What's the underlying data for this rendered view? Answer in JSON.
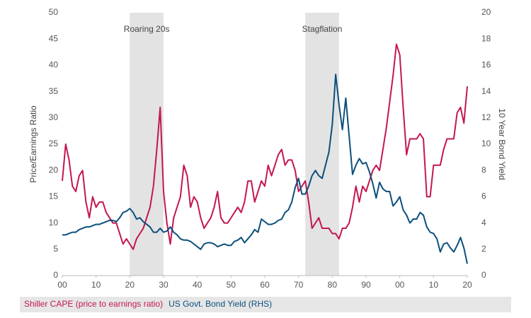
{
  "chart_data": {
    "type": "line",
    "y_label": "Price/Earnings Ratio",
    "y2_label": "10 Year Bond Yield",
    "x": [
      1900,
      1901,
      1902,
      1903,
      1904,
      1905,
      1906,
      1907,
      1908,
      1909,
      1910,
      1911,
      1912,
      1913,
      1914,
      1915,
      1916,
      1917,
      1918,
      1919,
      1920,
      1921,
      1922,
      1923,
      1924,
      1925,
      1926,
      1927,
      1928,
      1929,
      1930,
      1931,
      1932,
      1933,
      1934,
      1935,
      1936,
      1937,
      1938,
      1939,
      1940,
      1941,
      1942,
      1943,
      1944,
      1945,
      1946,
      1947,
      1948,
      1949,
      1950,
      1951,
      1952,
      1953,
      1954,
      1955,
      1956,
      1957,
      1958,
      1959,
      1960,
      1961,
      1962,
      1963,
      1964,
      1965,
      1966,
      1967,
      1968,
      1969,
      1970,
      1971,
      1972,
      1973,
      1974,
      1975,
      1976,
      1977,
      1978,
      1979,
      1980,
      1981,
      1982,
      1983,
      1984,
      1985,
      1986,
      1987,
      1988,
      1989,
      1990,
      1991,
      1992,
      1993,
      1994,
      1995,
      1996,
      1997,
      1998,
      1999,
      2000,
      2001,
      2002,
      2003,
      2004,
      2005,
      2006,
      2007,
      2008,
      2009,
      2010,
      2011,
      2012,
      2013,
      2014,
      2015,
      2016,
      2017,
      2018,
      2019,
      2020
    ],
    "series": [
      {
        "name": "Shiller CAPE (price to earnings ratio)",
        "color": "#c4174f",
        "axis": "y",
        "values": [
          18,
          25,
          22,
          17,
          16,
          19,
          20,
          14,
          11,
          15,
          13,
          14,
          14,
          12,
          11,
          10,
          10,
          8,
          6,
          7,
          6,
          5,
          7,
          8,
          9,
          11,
          13,
          17,
          24,
          32,
          16,
          10,
          6,
          11,
          13,
          15,
          21,
          19,
          13,
          15,
          14,
          11,
          9,
          10,
          11,
          13,
          16,
          11,
          10,
          10,
          11,
          12,
          13,
          12,
          14,
          18,
          18,
          14,
          16,
          18,
          17,
          21,
          19,
          21,
          23,
          24,
          21,
          22,
          22,
          20,
          16,
          17,
          18,
          14,
          9,
          10,
          11,
          9,
          9,
          9,
          8,
          8,
          7,
          9,
          9,
          10,
          13,
          17,
          14,
          17,
          16,
          18,
          20,
          21,
          20,
          24,
          28,
          33,
          38,
          44,
          42,
          32,
          23,
          26,
          26,
          26,
          27,
          26,
          15,
          15,
          21,
          21,
          21,
          24,
          26,
          26,
          26,
          31,
          32,
          29,
          36
        ]
      },
      {
        "name": "US Govt. Bond Yield (RHS)",
        "color": "#0b4f7c",
        "axis": "y2",
        "values": [
          3.1,
          3.1,
          3.2,
          3.3,
          3.3,
          3.5,
          3.6,
          3.7,
          3.7,
          3.8,
          3.9,
          3.9,
          4.0,
          4.1,
          4.2,
          4.2,
          4.1,
          4.4,
          4.8,
          4.9,
          5.1,
          4.8,
          4.3,
          4.4,
          4.1,
          3.9,
          3.7,
          3.3,
          3.3,
          3.6,
          3.3,
          3.4,
          3.7,
          3.3,
          3.1,
          2.8,
          2.7,
          2.7,
          2.6,
          2.4,
          2.2,
          2.0,
          2.4,
          2.5,
          2.5,
          2.4,
          2.2,
          2.3,
          2.4,
          2.3,
          2.3,
          2.6,
          2.7,
          2.9,
          2.5,
          2.8,
          3.1,
          3.5,
          3.3,
          4.3,
          4.1,
          3.9,
          3.9,
          4.0,
          4.2,
          4.3,
          4.8,
          5.0,
          5.6,
          6.7,
          7.4,
          6.2,
          6.2,
          6.8,
          7.6,
          8.0,
          7.6,
          7.4,
          8.4,
          9.4,
          11.5,
          15.3,
          13.0,
          11.1,
          13.5,
          10.6,
          7.7,
          8.4,
          8.9,
          8.5,
          8.6,
          7.9,
          7.0,
          5.9,
          7.1,
          6.6,
          6.4,
          6.4,
          5.3,
          5.6,
          6.0,
          5.0,
          4.6,
          4.0,
          4.3,
          4.3,
          4.8,
          4.6,
          3.7,
          3.3,
          3.2,
          2.8,
          1.8,
          2.4,
          2.5,
          2.1,
          1.8,
          2.3,
          2.9,
          2.1,
          0.9
        ]
      }
    ],
    "xlim": [
      1900,
      2020
    ],
    "xticks": [
      {
        "value": 1900,
        "label": "00"
      },
      {
        "value": 1910,
        "label": "10"
      },
      {
        "value": 1920,
        "label": "20"
      },
      {
        "value": 1930,
        "label": "30"
      },
      {
        "value": 1940,
        "label": "40"
      },
      {
        "value": 1950,
        "label": "50"
      },
      {
        "value": 1960,
        "label": "60"
      },
      {
        "value": 1970,
        "label": "70"
      },
      {
        "value": 1980,
        "label": "80"
      },
      {
        "value": 1990,
        "label": "90"
      },
      {
        "value": 2000,
        "label": "00"
      },
      {
        "value": 2010,
        "label": "10"
      },
      {
        "value": 2020,
        "label": "20"
      }
    ],
    "ylim": [
      0,
      50
    ],
    "yticks": [
      0,
      5,
      10,
      15,
      20,
      25,
      30,
      35,
      40,
      45,
      50
    ],
    "y2lim": [
      0,
      20
    ],
    "y2ticks": [
      0,
      2,
      4,
      6,
      8,
      10,
      12,
      14,
      16,
      18,
      20
    ],
    "shaded_periods": [
      {
        "label": "Roaring 20s",
        "start": 1920,
        "end": 1930
      },
      {
        "label": "Stagflation",
        "start": 1972,
        "end": 1982
      }
    ],
    "shade_color": "#e3e3e3",
    "grid": false,
    "legend": "bottom"
  }
}
